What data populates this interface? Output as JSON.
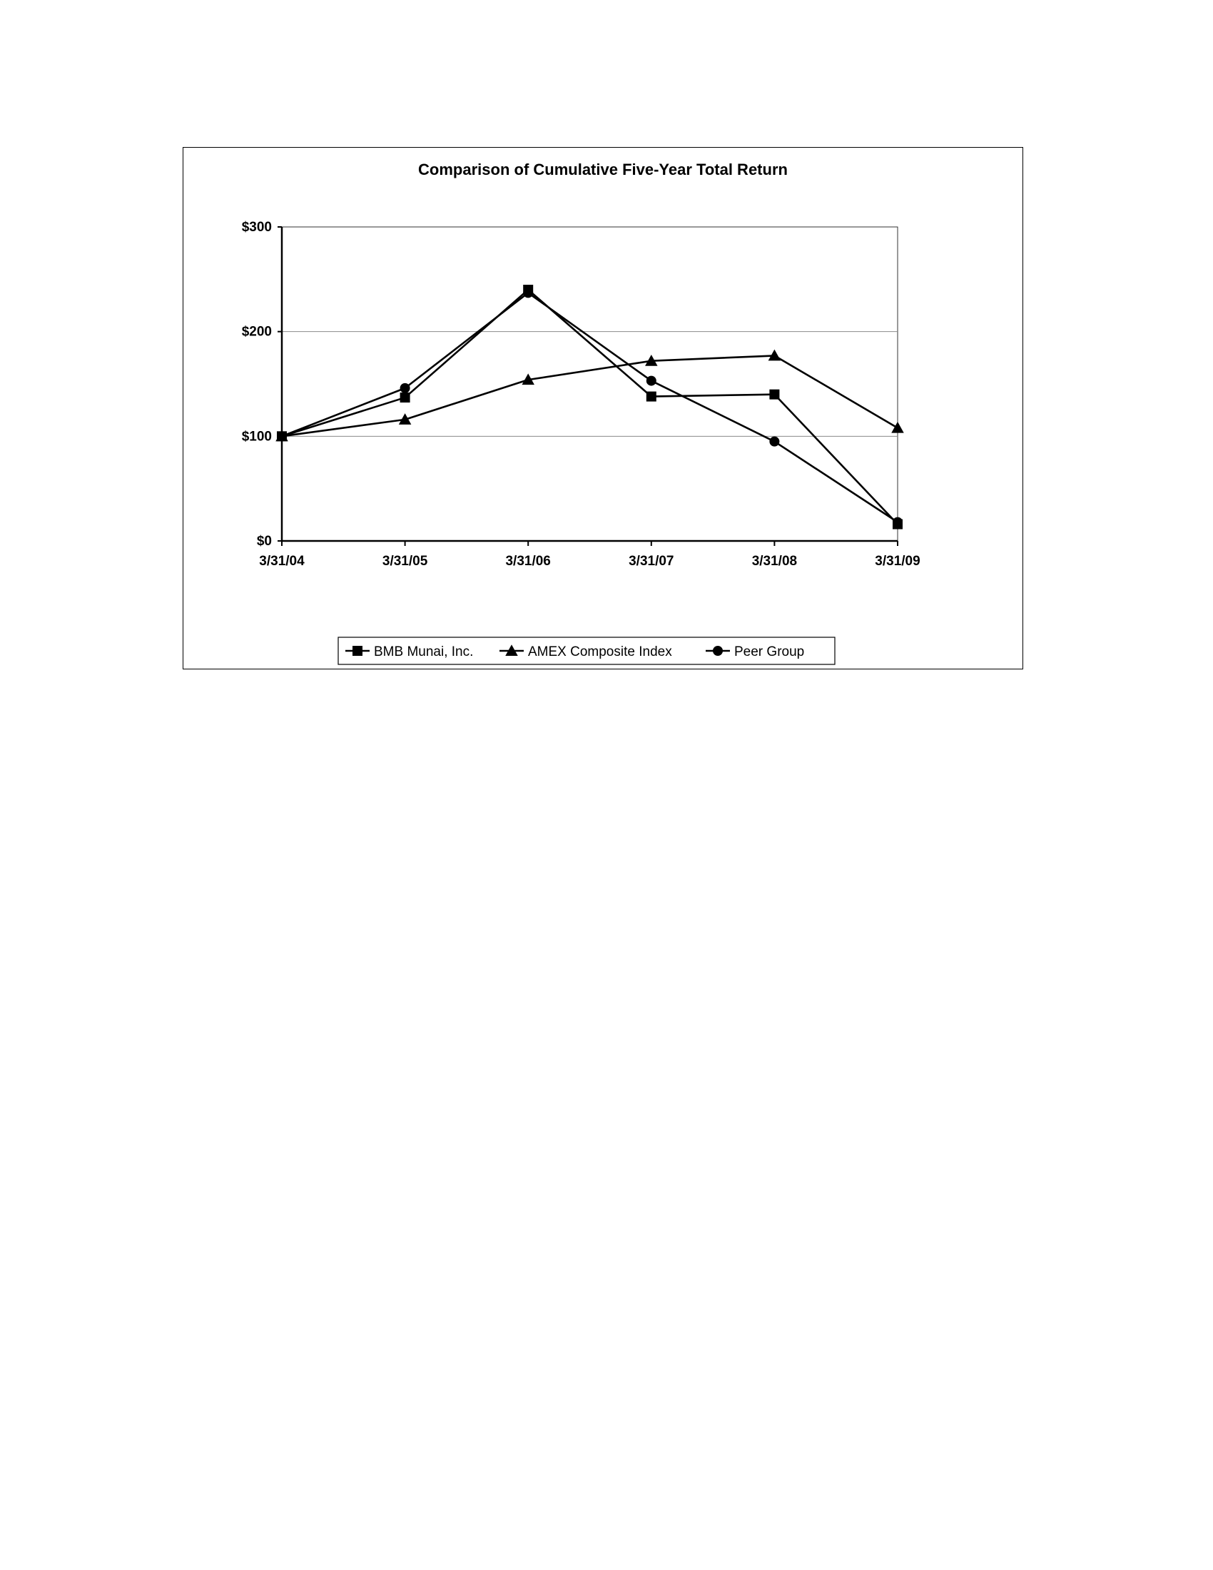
{
  "chart_data": {
    "type": "line",
    "title": "Comparison of Cumulative Five-Year Total Return",
    "xlabel": "",
    "ylabel": "",
    "categories": [
      "3/31/04",
      "3/31/05",
      "3/31/06",
      "3/31/07",
      "3/31/08",
      "3/31/09"
    ],
    "yticks": [
      0,
      100,
      200,
      300
    ],
    "ytick_labels": [
      "$0",
      "$100",
      "$200",
      "$300"
    ],
    "ylim": [
      0,
      300
    ],
    "grid": true,
    "legend_position": "bottom",
    "series": [
      {
        "name": "BMB Munai, Inc.",
        "marker": "square",
        "color": "#000000",
        "values": [
          100,
          137,
          240,
          138,
          140,
          16
        ]
      },
      {
        "name": "AMEX Composite Index",
        "marker": "triangle",
        "color": "#000000",
        "values": [
          100,
          116,
          154,
          172,
          177,
          108
        ]
      },
      {
        "name": "Peer Group",
        "marker": "circle",
        "color": "#000000",
        "values": [
          100,
          146,
          237,
          153,
          95,
          18
        ]
      }
    ]
  }
}
